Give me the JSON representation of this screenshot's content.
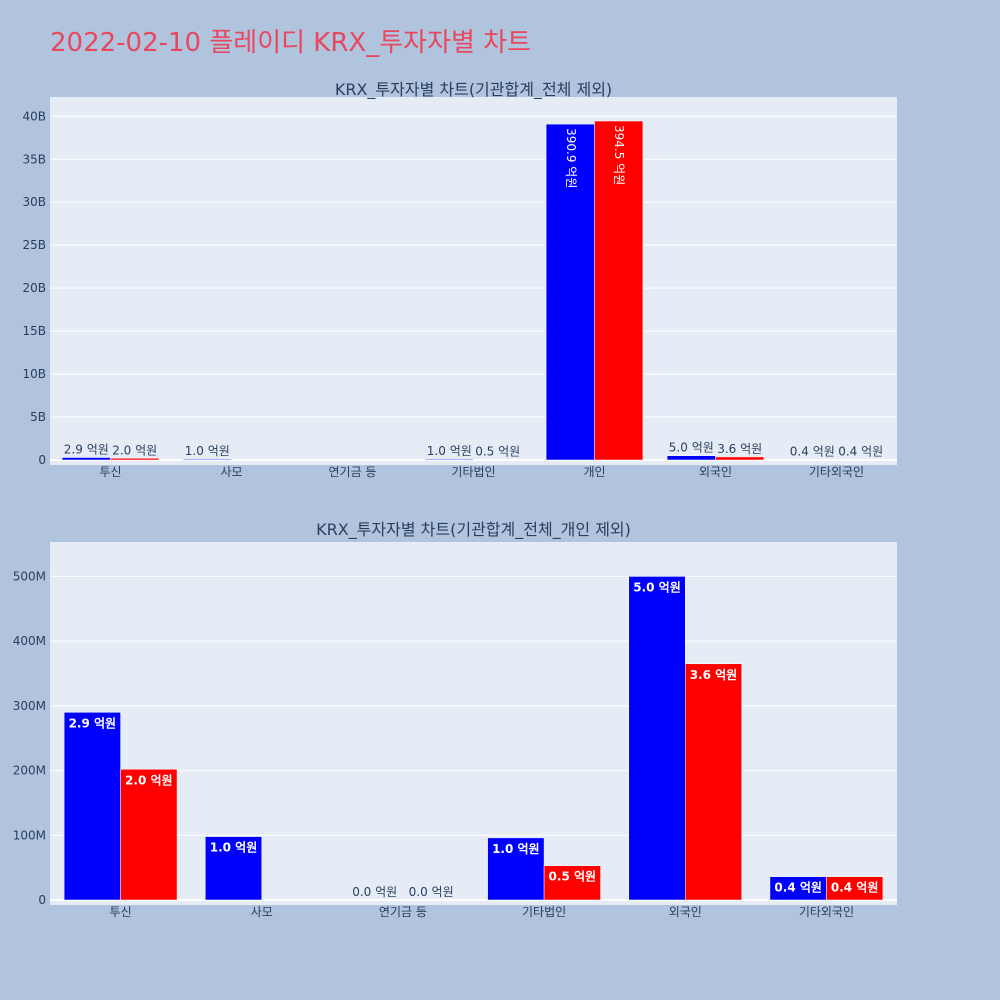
{
  "page_title": "2022-02-10 플레이디 KRX_투자자별 차트",
  "colors": {
    "buy": "#0000ff",
    "sell": "#ff0000",
    "plot_bg": "#e5ecf6",
    "page_bg": "#b0c4de",
    "title": "#e8475f"
  },
  "chart_data": [
    {
      "type": "bar",
      "title": "KRX_투자자별 차트(기관합계_전체 제외)",
      "categories": [
        "투신",
        "사모",
        "연기금 등",
        "기타법인",
        "개인",
        "외국인",
        "기타외국인"
      ],
      "y_ticks": [
        "0",
        "5B",
        "10B",
        "15B",
        "20B",
        "25B",
        "30B",
        "35B",
        "40B"
      ],
      "ylim": [
        0,
        40500000000
      ],
      "series": [
        {
          "color": "#0000ff",
          "values": [
            290000000,
            100000000,
            0,
            100000000,
            39090000000,
            500000000,
            40000000
          ],
          "labels": [
            "2.9 억원",
            "1.0 억원",
            "",
            "1.0 억원",
            "390.9 억원",
            "5.0 억원",
            "0.4 억원"
          ]
        },
        {
          "color": "#ff0000",
          "values": [
            200000000,
            0,
            0,
            50000000,
            39450000000,
            360000000,
            40000000
          ],
          "labels": [
            "2.0 억원",
            "",
            "",
            "0.5 억원",
            "394.5 억원",
            "3.6 억원",
            "0.4 억원"
          ]
        }
      ]
    },
    {
      "type": "bar",
      "title": "KRX_투자자별 차트(기관합계_전체_개인 제외)",
      "categories": [
        "투신",
        "사모",
        "연기금 등",
        "기타법인",
        "외국인",
        "기타외국인"
      ],
      "y_ticks": [
        "0",
        "100M",
        "200M",
        "300M",
        "400M",
        "500M"
      ],
      "ylim": [
        0,
        530000000
      ],
      "series": [
        {
          "color": "#0000ff",
          "values": [
            290000000,
            98000000,
            0,
            96000000,
            500000000,
            36000000
          ],
          "labels": [
            "2.9 억원",
            "1.0 억원",
            "0.0 억원",
            "1.0 억원",
            "5.0 억원",
            "0.4 억원"
          ]
        },
        {
          "color": "#ff0000",
          "values": [
            202000000,
            0,
            0,
            53000000,
            365000000,
            36000000
          ],
          "labels": [
            "2.0 억원",
            "",
            "0.0 억원",
            "0.5 억원",
            "3.6 억원",
            "0.4 억원"
          ]
        }
      ]
    }
  ]
}
